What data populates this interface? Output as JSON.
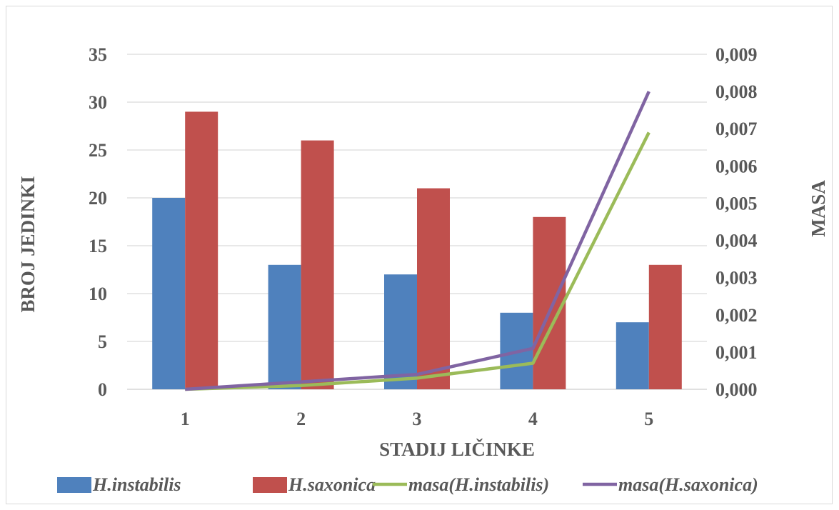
{
  "colors": {
    "instabilis": "#4f81bd",
    "saxonica": "#c0504d",
    "masa_instabilis": "#9bbb59",
    "masa_saxonica": "#8064a2",
    "grid": "#d9d9d9",
    "text": "#595959"
  },
  "chart_data": {
    "type": "bar",
    "categories": [
      "1",
      "2",
      "3",
      "4",
      "5"
    ],
    "series": [
      {
        "name": "H.instabilis",
        "type": "bar",
        "axis": "left",
        "values": [
          20,
          13,
          12,
          8,
          7
        ]
      },
      {
        "name": "H.saxonica",
        "type": "bar",
        "axis": "left",
        "values": [
          29,
          26,
          21,
          18,
          13
        ]
      },
      {
        "name": "masa(H.instabilis)",
        "type": "line",
        "axis": "right",
        "values": [
          0.0,
          0.0001,
          0.0003,
          0.0007,
          0.0069
        ]
      },
      {
        "name": "masa(H.saxonica)",
        "type": "line",
        "axis": "right",
        "values": [
          0.0,
          0.0002,
          0.0004,
          0.0011,
          0.008
        ]
      }
    ],
    "xlabel": "STADIJ LIČINKE",
    "ylabel": "BROJ JEDINKI",
    "y2label": "MASA",
    "ylim": [
      0,
      35
    ],
    "y2lim": [
      0,
      0.009
    ],
    "yticks": [
      "0",
      "5",
      "10",
      "15",
      "20",
      "25",
      "30",
      "35"
    ],
    "y2ticks": [
      "0,000",
      "0,001",
      "0,002",
      "0,003",
      "0,004",
      "0,005",
      "0,006",
      "0,007",
      "0,008",
      "0,009"
    ],
    "grid": true,
    "legend_position": "bottom"
  }
}
